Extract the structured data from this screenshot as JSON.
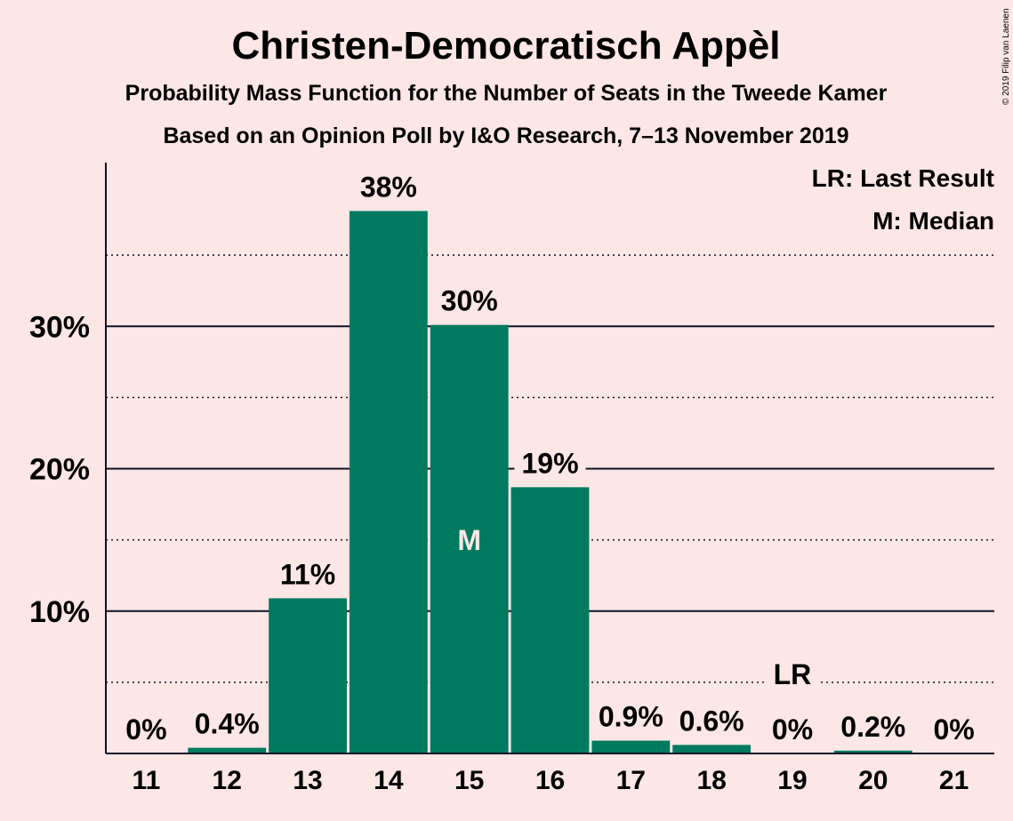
{
  "chart_data": {
    "type": "bar",
    "title": "Christen-Democratisch Appèl",
    "subtitle": "Probability Mass Function for the Number of Seats in the Tweede Kamer",
    "subtitle2": "Based on an Opinion Poll by I&O Research, 7–13 November 2019",
    "copyright": "© 2019 Filip van Laenen",
    "categories": [
      "11",
      "12",
      "13",
      "14",
      "15",
      "16",
      "17",
      "18",
      "19",
      "20",
      "21"
    ],
    "values": [
      0,
      0.4,
      10.9,
      38.1,
      30.1,
      18.7,
      0.9,
      0.6,
      0,
      0.2,
      0
    ],
    "value_labels": [
      "0%",
      "0.4%",
      "11%",
      "38%",
      "30%",
      "19%",
      "0.9%",
      "0.6%",
      "0%",
      "0.2%",
      "0%"
    ],
    "ylim": [
      0,
      41.5
    ],
    "yticks": [
      10,
      20,
      30
    ],
    "ytick_labels": [
      "10%",
      "20%",
      "30%"
    ],
    "minor_gridlines": [
      5,
      15,
      25,
      35
    ],
    "median_category": "15",
    "median_marker": "M",
    "last_result_category": "19",
    "last_result_marker": "LR",
    "legend": [
      "LR: Last Result",
      "M: Median"
    ],
    "legend_position": "top-right",
    "bar_color": "#007a5e",
    "background_color": "#fce6e6",
    "text_color": "#0f1126"
  }
}
